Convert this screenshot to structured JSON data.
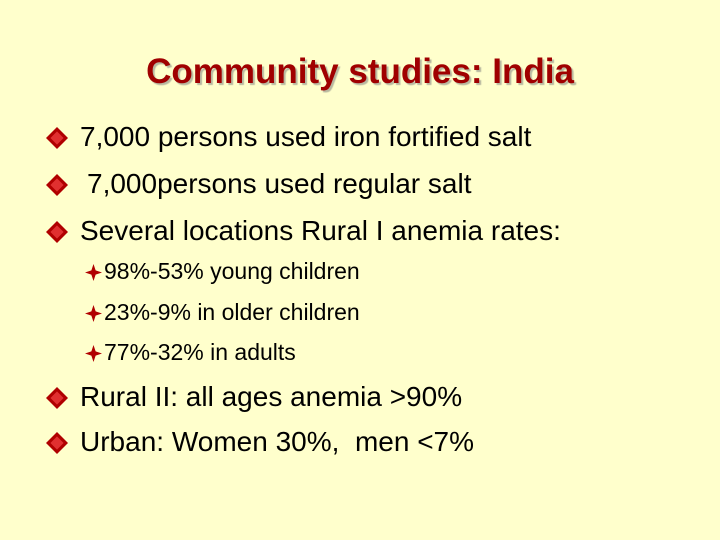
{
  "title": "Community studies: India",
  "bullets": [
    {
      "text": "7,000 persons used iron fortified salt"
    },
    {
      "text": "7,000persons used regular salt"
    },
    {
      "text": "Several locations Rural I anemia rates:",
      "sub": [
        "98%-53% young children",
        "23%-9% in older children",
        "77%-32% in adults"
      ]
    },
    {
      "text": "Rural II: all ages anemia >90%"
    },
    {
      "text": "Urban: Women 30%,  men <7%"
    }
  ]
}
